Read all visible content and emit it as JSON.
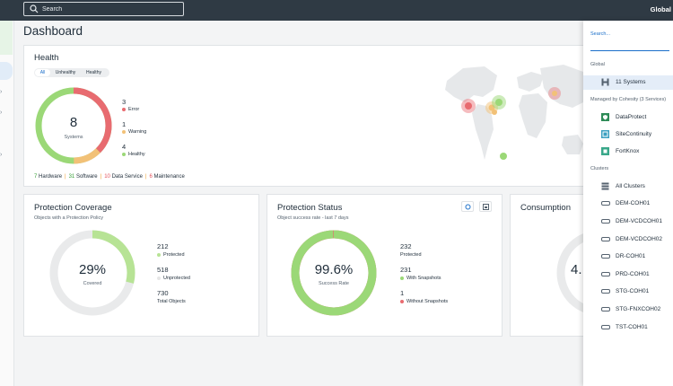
{
  "topbar": {
    "search_placeholder": "Search",
    "scope_label": "Global"
  },
  "page": {
    "title": "Dashboard"
  },
  "health": {
    "title": "Health",
    "filters": [
      "All",
      "Unhealthy",
      "Healthy"
    ],
    "total": "8",
    "total_label": "Systems",
    "stats": [
      {
        "value": "3",
        "label": "Error",
        "color": "#e86b70"
      },
      {
        "value": "1",
        "label": "Warning",
        "color": "#f2c177"
      },
      {
        "value": "4",
        "label": "Healthy",
        "color": "#9bd877"
      }
    ],
    "legend": [
      {
        "value": "7",
        "label": "Hardware",
        "color": "#3aa13a"
      },
      {
        "value": "31",
        "label": "Software",
        "color": "#3aa13a"
      },
      {
        "value": "10",
        "label": "Data Service",
        "color": "#e3505a"
      },
      {
        "value": "6",
        "label": "Maintenance",
        "color": "#e3505a"
      }
    ]
  },
  "coverage": {
    "title": "Protection Coverage",
    "subtitle": "Objects with a Protection Policy",
    "percent": "29%",
    "percent_label": "Covered",
    "fill_fraction": 0.29,
    "stats": [
      {
        "value": "212",
        "label": "Protected",
        "color": "#b7e395"
      },
      {
        "value": "518",
        "label": "Unprotected",
        "color": "#e6e6e6"
      },
      {
        "value": "730",
        "label": "Total Objects",
        "color": ""
      }
    ]
  },
  "status": {
    "title": "Protection Status",
    "subtitle": "Object success rate - last 7 days",
    "percent": "99.6%",
    "percent_label": "Success Rate",
    "fill_fraction": 0.996,
    "stats": [
      {
        "value": "232",
        "label": "Protected",
        "color": ""
      },
      {
        "value": "231",
        "label": "With Snapshots",
        "color": "#9bd877"
      },
      {
        "value": "1",
        "label": "Without Snapshots",
        "color": "#e86b70"
      }
    ]
  },
  "consumption": {
    "title": "Consumption",
    "value_partial": "4."
  },
  "panel": {
    "search_label": "Search...",
    "global_heading": "Global",
    "global_item": "11 Systems",
    "managed_heading": "Managed by Cohesity (3 Services)",
    "services": [
      {
        "label": "DataProtect",
        "color": "#2e8b57"
      },
      {
        "label": "SiteContinuity",
        "color": "#3a9fc0"
      },
      {
        "label": "FortKnox",
        "color": "#3aa88a"
      }
    ],
    "clusters_heading": "Clusters",
    "clusters": [
      "All Clusters",
      "DEM-COH01",
      "DEM-VCDCOH01",
      "DEM-VCDCOH02",
      "DR-COH01",
      "PRD-COH01",
      "STG-COH01",
      "STG-FNXCOH02",
      "TST-COH01"
    ]
  }
}
